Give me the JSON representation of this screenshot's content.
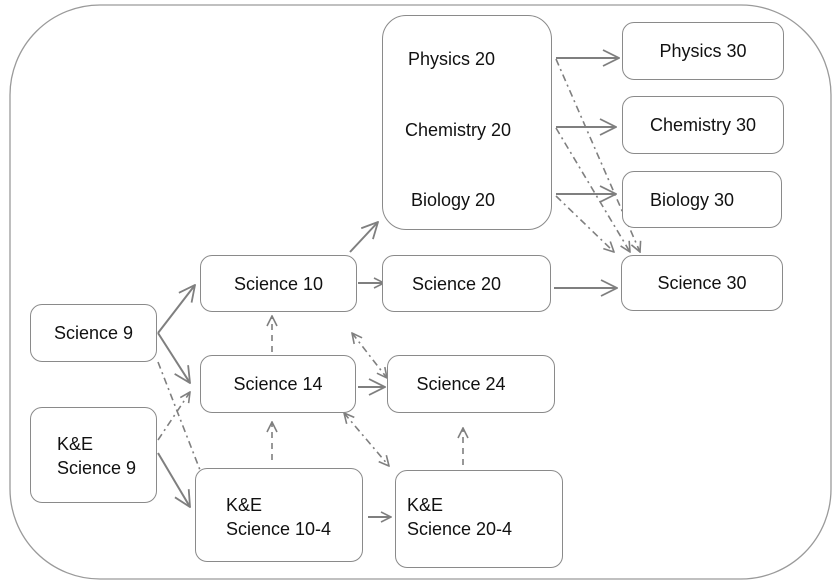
{
  "nodes": {
    "physics20": "Physics 20",
    "chemistry20": "Chemistry 20",
    "biology20": "Biology 20",
    "physics30": "Physics 30",
    "chemistry30": "Chemistry 30",
    "biology30": "Biology 30",
    "science30": "Science 30",
    "science10": "Science 10",
    "science20": "Science 20",
    "science9": "Science 9",
    "science14": "Science 14",
    "science24": "Science 24",
    "ke_science9": [
      "K&E",
      "Science 9"
    ],
    "ke_science10_4": [
      "K&E",
      "Science 10-4"
    ],
    "ke_science20_4": [
      "K&E",
      "Science 20-4"
    ]
  },
  "colors": {
    "line": "#7f7f7f",
    "border": "#8a8a8a"
  }
}
